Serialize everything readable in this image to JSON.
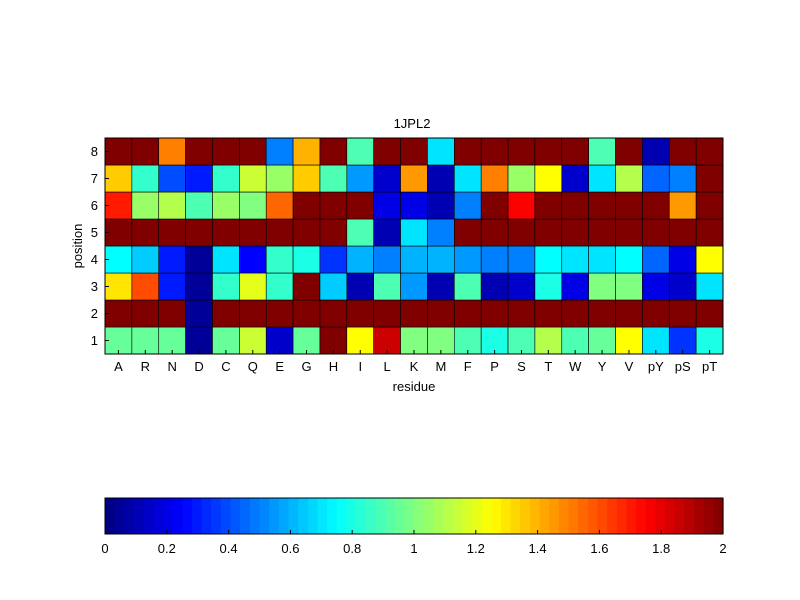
{
  "chart_data": {
    "type": "heatmap",
    "title": "1JPL2",
    "xlabel": "residue",
    "ylabel": "position",
    "x_categories": [
      "A",
      "R",
      "N",
      "D",
      "C",
      "Q",
      "E",
      "G",
      "H",
      "I",
      "L",
      "K",
      "M",
      "F",
      "P",
      "S",
      "T",
      "W",
      "Y",
      "V",
      "pY",
      "pS",
      "pT"
    ],
    "y_categories": [
      "1",
      "2",
      "3",
      "4",
      "5",
      "6",
      "7",
      "8"
    ],
    "values": [
      [
        0.95,
        0.95,
        0.95,
        0.05,
        0.95,
        1.15,
        0.15,
        0.95,
        2.0,
        1.25,
        1.85,
        1.0,
        1.0,
        0.9,
        0.8,
        0.9,
        1.1,
        0.9,
        0.95,
        1.25,
        0.7,
        0.35,
        0.8
      ],
      [
        2.0,
        2.0,
        2.0,
        0.05,
        2.0,
        2.0,
        2.0,
        2.0,
        2.0,
        2.0,
        2.0,
        2.0,
        2.0,
        2.0,
        2.0,
        2.0,
        2.0,
        2.0,
        2.0,
        2.0,
        2.0,
        2.0,
        2.0
      ],
      [
        1.3,
        1.6,
        0.3,
        0.05,
        0.85,
        1.2,
        0.85,
        2.0,
        0.65,
        0.1,
        0.9,
        0.55,
        0.1,
        0.9,
        0.1,
        0.15,
        0.8,
        0.2,
        1.0,
        1.0,
        0.2,
        0.15,
        0.7
      ],
      [
        0.75,
        0.65,
        0.3,
        0.05,
        0.7,
        0.25,
        0.85,
        0.8,
        0.35,
        0.6,
        0.5,
        0.6,
        0.6,
        0.55,
        0.5,
        0.5,
        0.75,
        0.7,
        0.7,
        0.75,
        0.45,
        0.2,
        1.25
      ],
      [
        2.0,
        2.0,
        2.0,
        2.0,
        2.0,
        2.0,
        2.0,
        2.0,
        2.0,
        0.9,
        0.1,
        0.7,
        0.5,
        2.0,
        2.0,
        2.0,
        2.0,
        2.0,
        2.0,
        2.0,
        2.0,
        2.0,
        2.0
      ],
      [
        1.7,
        1.05,
        1.1,
        0.9,
        1.05,
        1.0,
        1.55,
        2.0,
        2.0,
        2.0,
        0.2,
        0.2,
        0.1,
        0.5,
        2.0,
        1.75,
        2.0,
        2.0,
        2.0,
        2.0,
        2.0,
        1.45,
        2.0
      ],
      [
        1.35,
        0.85,
        0.4,
        0.3,
        0.85,
        1.15,
        1.05,
        1.35,
        0.9,
        0.55,
        0.15,
        1.45,
        0.1,
        0.7,
        1.5,
        1.05,
        1.25,
        0.15,
        0.7,
        1.1,
        0.45,
        0.5,
        2.0
      ],
      [
        2.0,
        2.0,
        1.5,
        2.0,
        2.0,
        2.0,
        0.5,
        1.4,
        2.0,
        0.9,
        2.0,
        2.0,
        0.7,
        2.0,
        2.0,
        2.0,
        2.0,
        2.0,
        0.9,
        2.0,
        0.1,
        2.0,
        2.0
      ]
    ],
    "colormap": "jet",
    "clim": [
      0,
      2
    ],
    "colorbar": {
      "orientation": "horizontal",
      "placement": "bottom",
      "ticks": [
        0,
        0.2,
        0.4,
        0.6,
        0.8,
        1,
        1.2,
        1.4,
        1.6,
        1.8,
        2
      ],
      "tick_labels": [
        "0",
        "0.2",
        "0.4",
        "0.6",
        "0.8",
        "1",
        "1.2",
        "1.4",
        "1.6",
        "1.8",
        "2"
      ]
    },
    "grid": true
  }
}
